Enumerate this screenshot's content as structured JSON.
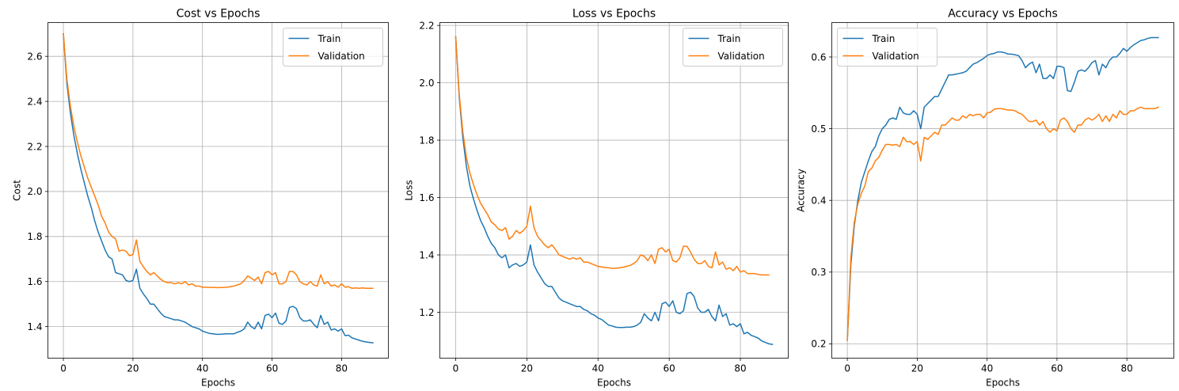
{
  "colors": {
    "train": "#1f77b4",
    "validation": "#ff7f0e",
    "grid": "#b0b0b0"
  },
  "chart_data": [
    {
      "type": "line",
      "title": "Cost vs Epochs",
      "xlabel": "Epochs",
      "ylabel": "Cost",
      "xlim": [
        -4.45,
        93.45
      ],
      "ylim": [
        1.26,
        2.75
      ],
      "xticks": [
        0,
        20,
        40,
        60,
        80
      ],
      "yticks": [
        1.4,
        1.6,
        1.8,
        2.0,
        2.2,
        2.4,
        2.6
      ],
      "ytick_labels": [
        "1.4",
        "1.6",
        "1.8",
        "2.0",
        "2.2",
        "2.4",
        "2.6"
      ],
      "grid": true,
      "legend": "upper right",
      "series": [
        {
          "name": "Train",
          "values": [
            2.7,
            2.48,
            2.35,
            2.25,
            2.17,
            2.1,
            2.04,
            1.98,
            1.93,
            1.87,
            1.82,
            1.78,
            1.74,
            1.71,
            1.7,
            1.64,
            1.635,
            1.63,
            1.605,
            1.6,
            1.605,
            1.655,
            1.57,
            1.545,
            1.525,
            1.5,
            1.5,
            1.48,
            1.46,
            1.445,
            1.44,
            1.435,
            1.43,
            1.43,
            1.425,
            1.42,
            1.41,
            1.4,
            1.395,
            1.39,
            1.38,
            1.375,
            1.37,
            1.368,
            1.366,
            1.366,
            1.367,
            1.368,
            1.368,
            1.368,
            1.375,
            1.38,
            1.39,
            1.42,
            1.4,
            1.39,
            1.42,
            1.39,
            1.45,
            1.455,
            1.44,
            1.46,
            1.415,
            1.41,
            1.425,
            1.485,
            1.49,
            1.48,
            1.44,
            1.425,
            1.425,
            1.43,
            1.41,
            1.395,
            1.45,
            1.41,
            1.42,
            1.385,
            1.39,
            1.38,
            1.39,
            1.36,
            1.362,
            1.35,
            1.345,
            1.34,
            1.335,
            1.332,
            1.33,
            1.328
          ]
        },
        {
          "name": "Validation",
          "values": [
            2.7,
            2.5,
            2.38,
            2.29,
            2.22,
            2.16,
            2.11,
            2.06,
            2.02,
            1.98,
            1.94,
            1.89,
            1.86,
            1.82,
            1.8,
            1.79,
            1.735,
            1.74,
            1.735,
            1.715,
            1.72,
            1.785,
            1.69,
            1.665,
            1.645,
            1.63,
            1.64,
            1.625,
            1.61,
            1.6,
            1.595,
            1.595,
            1.59,
            1.595,
            1.59,
            1.6,
            1.585,
            1.59,
            1.58,
            1.58,
            1.575,
            1.575,
            1.574,
            1.574,
            1.573,
            1.573,
            1.574,
            1.575,
            1.577,
            1.58,
            1.585,
            1.59,
            1.605,
            1.625,
            1.615,
            1.605,
            1.62,
            1.59,
            1.64,
            1.645,
            1.63,
            1.64,
            1.59,
            1.59,
            1.6,
            1.645,
            1.645,
            1.63,
            1.6,
            1.59,
            1.585,
            1.6,
            1.585,
            1.58,
            1.63,
            1.59,
            1.6,
            1.58,
            1.585,
            1.575,
            1.59,
            1.575,
            1.577,
            1.57,
            1.572,
            1.57,
            1.572,
            1.57,
            1.57,
            1.57
          ]
        }
      ]
    },
    {
      "type": "line",
      "title": "Loss vs Epochs",
      "xlabel": "Epochs",
      "ylabel": "Loss",
      "xlim": [
        -4.45,
        93.45
      ],
      "ylim": [
        1.04,
        2.21
      ],
      "xticks": [
        0,
        20,
        40,
        60,
        80
      ],
      "yticks": [
        1.2,
        1.4,
        1.6,
        1.8,
        2.0,
        2.2
      ],
      "ytick_labels": [
        "1.2",
        "1.4",
        "1.6",
        "1.8",
        "2.0",
        "2.2"
      ],
      "grid": true,
      "legend": "upper right",
      "series": [
        {
          "name": "Train",
          "values": [
            2.16,
            1.95,
            1.81,
            1.71,
            1.64,
            1.595,
            1.555,
            1.52,
            1.495,
            1.465,
            1.44,
            1.425,
            1.4,
            1.39,
            1.4,
            1.355,
            1.365,
            1.37,
            1.36,
            1.365,
            1.375,
            1.435,
            1.365,
            1.34,
            1.32,
            1.3,
            1.29,
            1.29,
            1.27,
            1.25,
            1.24,
            1.235,
            1.23,
            1.225,
            1.22,
            1.22,
            1.21,
            1.205,
            1.195,
            1.19,
            1.18,
            1.175,
            1.165,
            1.155,
            1.152,
            1.148,
            1.147,
            1.147,
            1.148,
            1.148,
            1.15,
            1.155,
            1.165,
            1.195,
            1.18,
            1.17,
            1.2,
            1.17,
            1.23,
            1.235,
            1.22,
            1.24,
            1.2,
            1.195,
            1.205,
            1.265,
            1.27,
            1.255,
            1.215,
            1.2,
            1.2,
            1.21,
            1.185,
            1.17,
            1.225,
            1.185,
            1.195,
            1.155,
            1.16,
            1.15,
            1.16,
            1.125,
            1.13,
            1.12,
            1.115,
            1.11,
            1.1,
            1.095,
            1.09,
            1.088
          ]
        },
        {
          "name": "Validation",
          "values": [
            2.16,
            1.96,
            1.83,
            1.74,
            1.685,
            1.645,
            1.61,
            1.58,
            1.56,
            1.54,
            1.515,
            1.505,
            1.49,
            1.485,
            1.495,
            1.455,
            1.465,
            1.485,
            1.475,
            1.485,
            1.5,
            1.57,
            1.495,
            1.465,
            1.45,
            1.435,
            1.425,
            1.435,
            1.42,
            1.4,
            1.395,
            1.39,
            1.385,
            1.39,
            1.385,
            1.39,
            1.375,
            1.375,
            1.37,
            1.365,
            1.36,
            1.358,
            1.356,
            1.355,
            1.353,
            1.354,
            1.355,
            1.357,
            1.36,
            1.363,
            1.37,
            1.38,
            1.4,
            1.395,
            1.38,
            1.4,
            1.37,
            1.42,
            1.425,
            1.41,
            1.42,
            1.38,
            1.375,
            1.39,
            1.43,
            1.43,
            1.41,
            1.385,
            1.37,
            1.37,
            1.38,
            1.36,
            1.355,
            1.41,
            1.365,
            1.375,
            1.35,
            1.355,
            1.345,
            1.36,
            1.34,
            1.345,
            1.335,
            1.335,
            1.335,
            1.332,
            1.33,
            1.33,
            1.33
          ]
        }
      ]
    },
    {
      "type": "line",
      "title": "Accuracy vs Epochs",
      "xlabel": "Epochs",
      "ylabel": "Accuracy",
      "xlim": [
        -4.45,
        93.45
      ],
      "ylim": [
        0.18,
        0.648
      ],
      "xticks": [
        0,
        20,
        40,
        60,
        80
      ],
      "yticks": [
        0.2,
        0.3,
        0.4,
        0.5,
        0.6
      ],
      "ytick_labels": [
        "0.2",
        "0.3",
        "0.4",
        "0.5",
        "0.6"
      ],
      "grid": true,
      "legend": "upper left",
      "series": [
        {
          "name": "Train",
          "values": [
            0.205,
            0.31,
            0.365,
            0.4,
            0.425,
            0.44,
            0.455,
            0.468,
            0.475,
            0.49,
            0.5,
            0.505,
            0.513,
            0.515,
            0.513,
            0.53,
            0.522,
            0.52,
            0.52,
            0.525,
            0.52,
            0.5,
            0.53,
            0.535,
            0.54,
            0.545,
            0.545,
            0.555,
            0.565,
            0.575,
            0.575,
            0.576,
            0.577,
            0.578,
            0.58,
            0.585,
            0.59,
            0.592,
            0.595,
            0.598,
            0.602,
            0.604,
            0.605,
            0.607,
            0.607,
            0.606,
            0.604,
            0.604,
            0.603,
            0.602,
            0.595,
            0.585,
            0.59,
            0.593,
            0.578,
            0.59,
            0.57,
            0.57,
            0.575,
            0.57,
            0.587,
            0.587,
            0.585,
            0.553,
            0.552,
            0.565,
            0.58,
            0.582,
            0.58,
            0.585,
            0.592,
            0.595,
            0.575,
            0.59,
            0.585,
            0.595,
            0.6,
            0.6,
            0.605,
            0.612,
            0.608,
            0.613,
            0.617,
            0.62,
            0.623,
            0.624,
            0.626,
            0.627,
            0.627,
            0.627
          ]
        },
        {
          "name": "Validation",
          "values": [
            0.205,
            0.32,
            0.37,
            0.395,
            0.41,
            0.42,
            0.44,
            0.445,
            0.455,
            0.46,
            0.47,
            0.478,
            0.478,
            0.477,
            0.478,
            0.475,
            0.488,
            0.482,
            0.482,
            0.478,
            0.482,
            0.455,
            0.488,
            0.485,
            0.49,
            0.495,
            0.492,
            0.505,
            0.505,
            0.51,
            0.515,
            0.512,
            0.512,
            0.518,
            0.515,
            0.52,
            0.518,
            0.52,
            0.52,
            0.515,
            0.522,
            0.523,
            0.527,
            0.528,
            0.528,
            0.527,
            0.526,
            0.526,
            0.525,
            0.522,
            0.52,
            0.515,
            0.51,
            0.51,
            0.512,
            0.505,
            0.51,
            0.5,
            0.495,
            0.5,
            0.497,
            0.512,
            0.515,
            0.51,
            0.5,
            0.495,
            0.505,
            0.505,
            0.512,
            0.515,
            0.512,
            0.515,
            0.52,
            0.51,
            0.518,
            0.51,
            0.52,
            0.515,
            0.525,
            0.52,
            0.52,
            0.525,
            0.525,
            0.528,
            0.53,
            0.528,
            0.528,
            0.528,
            0.528,
            0.53
          ]
        }
      ]
    }
  ]
}
